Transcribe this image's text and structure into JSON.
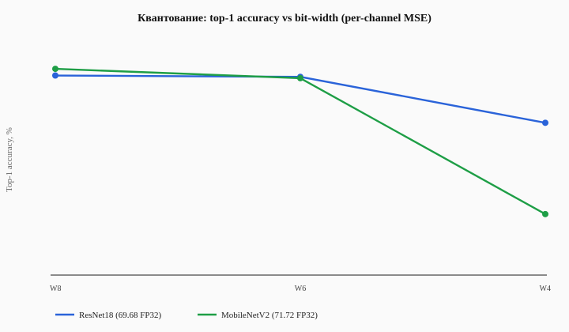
{
  "chart_data": {
    "type": "line",
    "title": "Квантование: top-1 accuracy vs bit-width (per-channel MSE)",
    "xlabel": "",
    "ylabel": "Top-1 accuracy, %",
    "categories": [
      "W8",
      "W6",
      "W4"
    ],
    "ylim": [
      40,
      75
    ],
    "grid": false,
    "legend_position": "bottom-left",
    "series": [
      {
        "name": "ResNet18 (69.68 FP32)",
        "color": "#2a63d9",
        "values": [
          69.6,
          69.4,
          62.5
        ]
      },
      {
        "name": "MobileNetV2 (71.72 FP32)",
        "color": "#1e9e46",
        "values": [
          70.6,
          69.2,
          48.8
        ]
      }
    ]
  }
}
